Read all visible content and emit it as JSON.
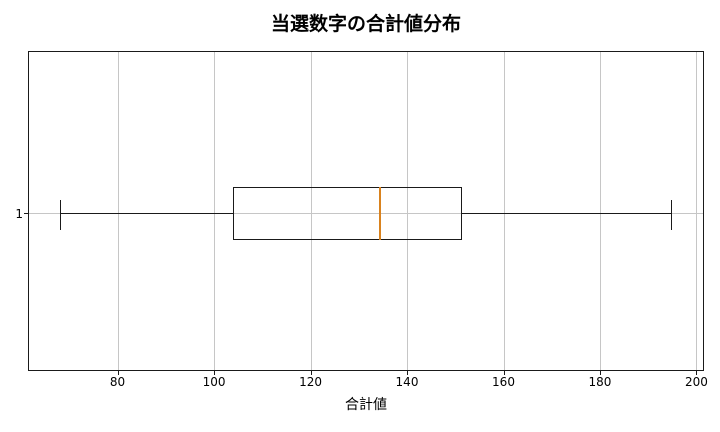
{
  "colors": {
    "grid": "#c6c6c6",
    "spine": "#1a1a1a",
    "box": "#1a1a1a",
    "median": "#d9821e"
  },
  "chart_data": {
    "type": "boxplot",
    "orientation": "horizontal",
    "title": "当選数字の合計値分布",
    "xlabel": "合計値",
    "ylabel": "",
    "xlim": [
      61.65,
      201.35
    ],
    "xticks": [
      80,
      100,
      120,
      140,
      160,
      180,
      200
    ],
    "yticks": [
      "1"
    ],
    "grid": true,
    "series": [
      {
        "name": "1",
        "min": 68,
        "q1": 104,
        "median": 134.5,
        "q3": 151.5,
        "max": 195
      }
    ]
  }
}
